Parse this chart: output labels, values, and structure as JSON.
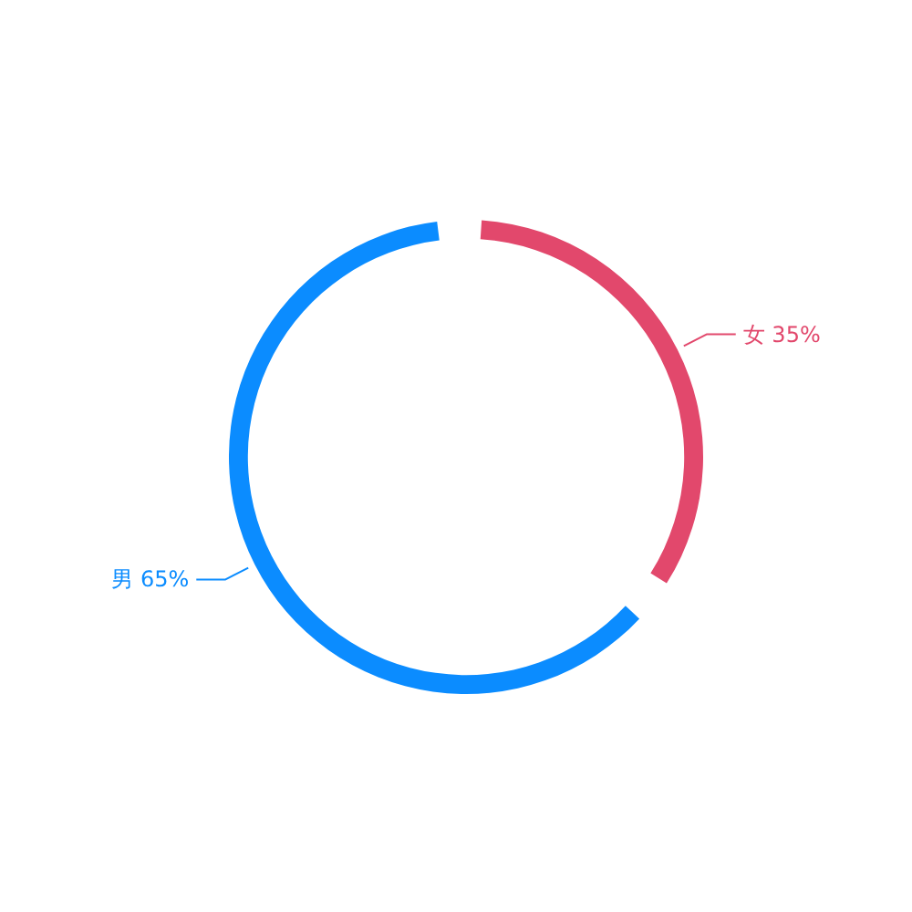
{
  "chart_data": {
    "type": "donut",
    "categories": [
      "女",
      "男"
    ],
    "values": [
      35,
      65
    ],
    "colors": [
      "#e2486c",
      "#0b8cff"
    ],
    "value_labels": [
      "35%",
      "65%"
    ]
  }
}
